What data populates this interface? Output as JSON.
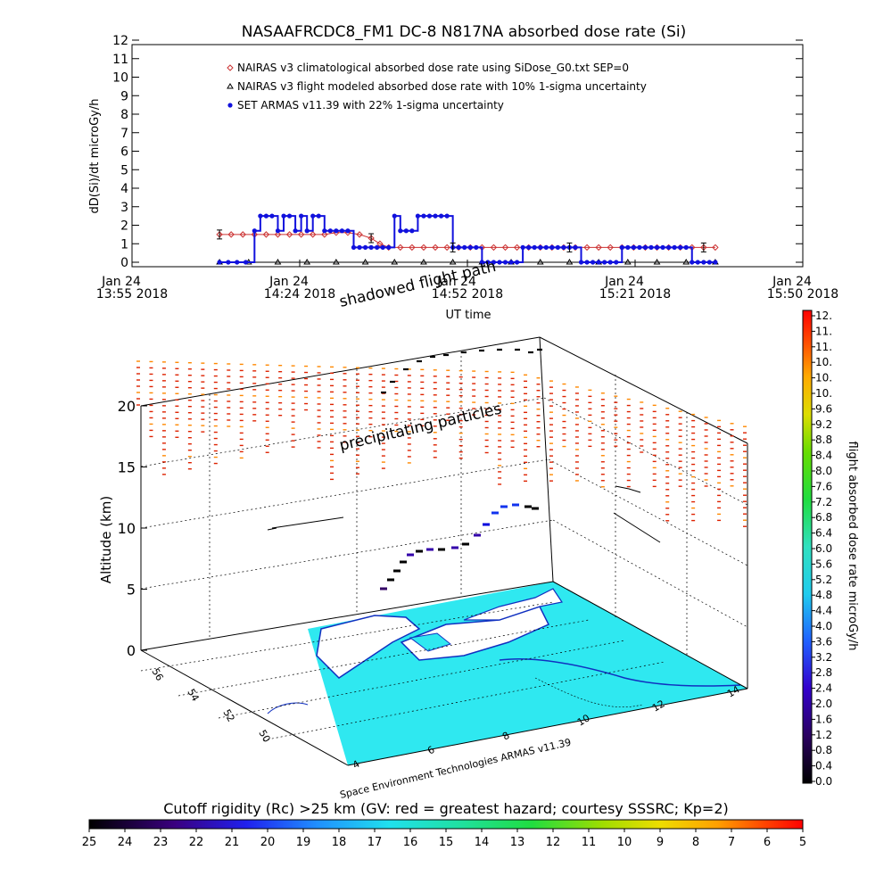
{
  "chart_data": [
    {
      "type": "line",
      "title": "NASAAFRCDC8_FM1 DC-8   N817NA absorbed dose rate (Si)",
      "xlabel": "UT time",
      "ylabel": "dD(Si)/dt microGy/h",
      "ylim": [
        0,
        12
      ],
      "yticks": [
        "0",
        "1",
        "2",
        "3",
        "4",
        "5",
        "6",
        "7",
        "8",
        "9",
        "10",
        "11",
        "12"
      ],
      "xticks": [
        {
          "date": "Jan 24",
          "time": "13:55 2018"
        },
        {
          "date": "Jan 24",
          "time": "14:24 2018"
        },
        {
          "date": "Jan 24",
          "time": "14:52 2018"
        },
        {
          "date": "Jan 24",
          "time": "15:21 2018"
        },
        {
          "date": "Jan 24",
          "time": "15:50 2018"
        }
      ],
      "xlim_minutes": [
        0,
        115
      ],
      "legend": [
        "NAIRAS v3 climatological absorbed dose rate using SiDose_G0.txt SEP=0",
        "NAIRAS v3 flight modeled absorbed dose rate with 10% 1-sigma uncertainty",
        "SET ARMAS v11.39 with 22% 1-sigma uncertainty"
      ],
      "legend_placement": "top-left",
      "series": [
        {
          "name": "NAIRAS v3 climatological absorbed dose rate using SiDose_G0.txt SEP=0",
          "color": "#cc3333",
          "marker": "diamond",
          "x": [
            15,
            17,
            19,
            21,
            23,
            25,
            27,
            29,
            31,
            33,
            35,
            37,
            39,
            41,
            42.5,
            44,
            46,
            48,
            50,
            52,
            54,
            56,
            58,
            60,
            62,
            64,
            66,
            68,
            70,
            72,
            74,
            76,
            78,
            80,
            82,
            84,
            86,
            88,
            90,
            92,
            94,
            96,
            98,
            100
          ],
          "y": [
            1.5,
            1.5,
            1.5,
            1.5,
            1.5,
            1.5,
            1.5,
            1.5,
            1.5,
            1.5,
            1.6,
            1.6,
            1.5,
            1.3,
            1.0,
            0.8,
            0.8,
            0.8,
            0.8,
            0.8,
            0.8,
            0.8,
            0.8,
            0.8,
            0.8,
            0.8,
            0.8,
            0.8,
            0.8,
            0.8,
            0.8,
            0.8,
            0.8,
            0.8,
            0.8,
            0.8,
            0.8,
            0.8,
            0.8,
            0.8,
            0.8,
            0.8,
            0.8,
            0.8
          ]
        },
        {
          "name": "NAIRAS v3 flight modeled absorbed dose rate with 10% 1-sigma uncertainty",
          "color": "#000000",
          "marker": "triangle",
          "x": [
            15,
            20,
            25,
            30,
            35,
            40,
            45,
            50,
            55,
            60,
            65,
            70,
            75,
            80,
            85,
            90,
            95,
            100
          ],
          "y": [
            0,
            0,
            0,
            0,
            0,
            0,
            0,
            0,
            0,
            0,
            0,
            0,
            0,
            0,
            0,
            0,
            0,
            0
          ]
        },
        {
          "name": "SET ARMAS v11.39 with 22% 1-sigma uncertainty",
          "color": "#1111dd",
          "marker": "circle",
          "x": [
            15,
            16.5,
            18,
            19.5,
            21,
            22,
            23,
            24,
            25,
            26,
            27,
            28,
            29,
            30,
            31,
            32,
            33,
            34,
            35,
            36,
            37,
            38,
            39,
            40,
            41,
            42,
            43,
            44,
            45,
            46,
            47,
            48,
            49,
            50,
            51,
            52,
            53,
            54,
            55,
            56,
            57,
            58,
            59,
            60,
            61,
            62,
            63,
            64,
            65,
            66,
            67,
            68,
            69,
            70,
            71,
            72,
            73,
            74,
            75,
            76,
            77,
            78,
            79,
            80,
            81,
            82,
            83,
            84,
            85,
            86,
            87,
            88,
            89,
            90,
            91,
            92,
            93,
            94,
            95,
            96,
            97,
            98,
            99,
            100
          ],
          "y": [
            0,
            0,
            0,
            0,
            1.7,
            2.5,
            2.5,
            2.5,
            1.7,
            2.5,
            2.5,
            1.7,
            2.5,
            1.7,
            2.5,
            2.5,
            1.7,
            1.7,
            1.7,
            1.7,
            1.7,
            0.8,
            0.8,
            0.8,
            0.8,
            0.8,
            0.8,
            0.8,
            2.5,
            1.7,
            1.7,
            1.7,
            2.5,
            2.5,
            2.5,
            2.5,
            2.5,
            2.5,
            0.8,
            0.8,
            0.8,
            0.8,
            0.8,
            0,
            0,
            0,
            0,
            0,
            0,
            0,
            0.8,
            0.8,
            0.8,
            0.8,
            0.8,
            0.8,
            0.8,
            0.8,
            0.8,
            0.8,
            0,
            0,
            0,
            0,
            0,
            0,
            0,
            0.8,
            0.8,
            0.8,
            0.8,
            0.8,
            0.8,
            0.8,
            0.8,
            0.8,
            0.8,
            0.8,
            0.8,
            0,
            0,
            0,
            0,
            0
          ]
        }
      ]
    },
    {
      "type": "scatter",
      "title": "",
      "zlabel": "Altitude (km)",
      "zticks": [
        "0",
        "5",
        "10",
        "15",
        "20"
      ],
      "zlim": [
        0,
        22
      ],
      "lat_ticks": [
        "50",
        "52",
        "54",
        "56"
      ],
      "lon_ticks": [
        "4",
        "6",
        "8",
        "10",
        "12",
        "14"
      ],
      "annotations": [
        "shadowed flight path",
        "precipitating particles"
      ],
      "credit": "Space Environment Technologies ARMAS v11.39",
      "colorbar": {
        "label": "flight absorbed dose rate microGy/h",
        "placement": "right",
        "min": 0.0,
        "max": 12.0,
        "ticks": [
          "12.",
          "11.",
          "11.",
          "10.",
          "10.",
          "10.",
          "9.6",
          "9.2",
          "8.8",
          "8.4",
          "8.0",
          "7.6",
          "7.2",
          "6.8",
          "6.4",
          "6.0",
          "5.6",
          "5.2",
          "4.8",
          "4.4",
          "4.0",
          "3.6",
          "3.2",
          "2.8",
          "2.4",
          "2.0",
          "1.6",
          "1.2",
          "0.8",
          "0.4",
          "0.0"
        ]
      }
    },
    {
      "type": "heatmap",
      "title": "Cutoff rigidity (Rc) >25 km (GV: red = greatest hazard; courtesy SSSRC; Kp=2)",
      "colorbar_ticks": [
        "25",
        "24",
        "23",
        "22",
        "21",
        "20",
        "19",
        "18",
        "17",
        "16",
        "15",
        "14",
        "13",
        "12",
        "11",
        "10",
        "9",
        "8",
        "7",
        "6",
        "5"
      ],
      "range": [
        25,
        5
      ]
    }
  ]
}
